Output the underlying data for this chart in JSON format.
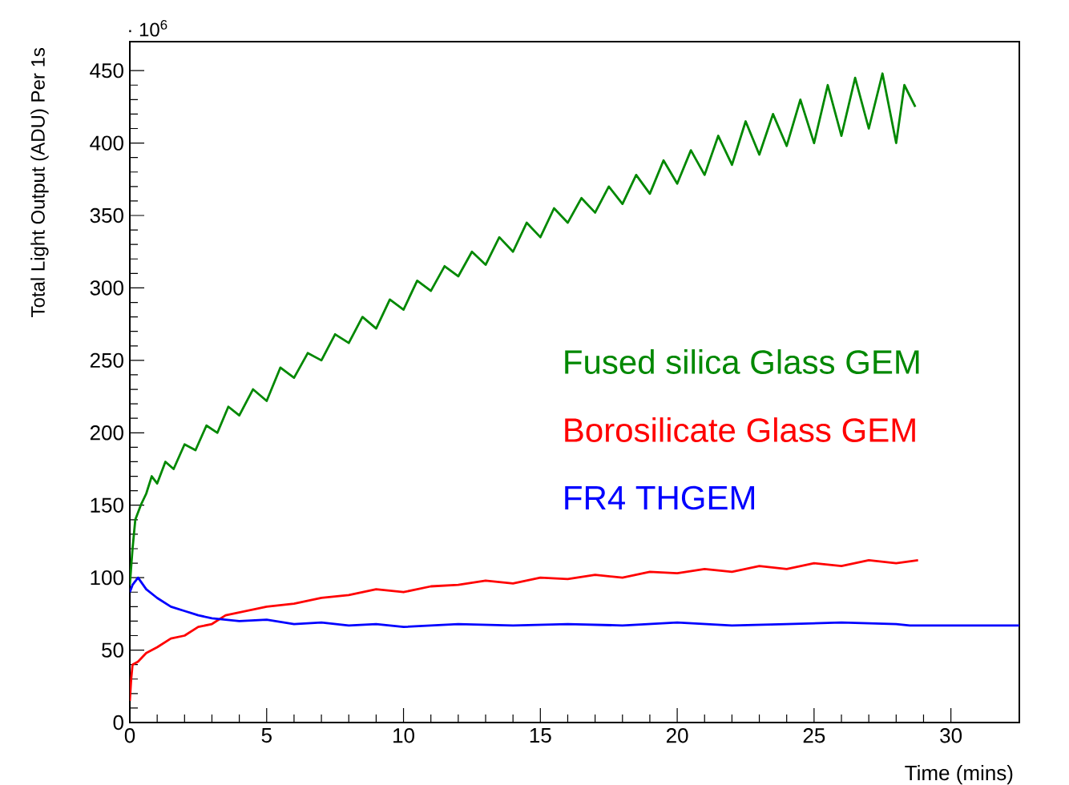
{
  "chart_data": {
    "type": "line",
    "xlabel": "Time (mins)",
    "ylabel": "Total Light Output (ADU) Per 1s",
    "annotations": [
      "· 10$^{6}$"
    ],
    "xlim": [
      0,
      32.5
    ],
    "ylim": [
      0,
      470
    ],
    "xticks": [
      0,
      5,
      10,
      15,
      20,
      25,
      30
    ],
    "yticks": [
      0,
      50,
      100,
      150,
      200,
      250,
      300,
      350,
      400,
      450
    ],
    "legend": false,
    "grid": false,
    "marker": "none",
    "line_style": "solid",
    "series": [
      {
        "name": "Fused silica Glass GEM",
        "color": "#008800",
        "x": [
          0,
          0.1,
          0.2,
          0.4,
          0.6,
          0.8,
          1.0,
          1.3,
          1.6,
          2.0,
          2.4,
          2.8,
          3.2,
          3.6,
          4.0,
          4.5,
          5.0,
          5.5,
          6.0,
          6.5,
          7.0,
          7.5,
          8.0,
          8.5,
          9.0,
          9.5,
          10,
          10.5,
          11,
          11.5,
          12,
          12.5,
          13,
          13.5,
          14,
          14.5,
          15,
          15.5,
          16,
          16.5,
          17,
          17.5,
          18,
          18.5,
          19,
          19.5,
          20,
          20.5,
          21,
          21.5,
          22,
          22.5,
          23,
          23.5,
          24,
          24.5,
          25,
          25.5,
          26,
          26.5,
          27,
          27.5,
          28,
          28.3,
          28.7
        ],
        "values": [
          95,
          120,
          140,
          150,
          158,
          170,
          165,
          180,
          175,
          192,
          188,
          205,
          200,
          218,
          212,
          230,
          222,
          245,
          238,
          255,
          250,
          268,
          262,
          280,
          272,
          292,
          285,
          305,
          298,
          315,
          308,
          325,
          316,
          335,
          325,
          345,
          335,
          355,
          345,
          362,
          352,
          370,
          358,
          378,
          365,
          388,
          372,
          395,
          378,
          405,
          385,
          415,
          392,
          420,
          398,
          430,
          400,
          440,
          405,
          445,
          410,
          448,
          400,
          440,
          425
        ]
      },
      {
        "name": "Borosilicate Glass GEM",
        "color": "#ff0000",
        "x": [
          0,
          0.05,
          0.1,
          0.3,
          0.6,
          1,
          1.5,
          2,
          2.5,
          3,
          3.5,
          4,
          5,
          6,
          7,
          8,
          9,
          10,
          11,
          12,
          13,
          14,
          15,
          16,
          17,
          18,
          19,
          20,
          21,
          22,
          23,
          24,
          25,
          26,
          27,
          28,
          28.8
        ],
        "values": [
          15,
          30,
          40,
          42,
          48,
          52,
          58,
          60,
          66,
          68,
          74,
          76,
          80,
          82,
          86,
          88,
          92,
          90,
          94,
          95,
          98,
          96,
          100,
          99,
          102,
          100,
          104,
          103,
          106,
          104,
          108,
          106,
          110,
          108,
          112,
          110,
          112
        ]
      },
      {
        "name": "FR4 THGEM",
        "color": "#0000ff",
        "x": [
          0,
          0.1,
          0.3,
          0.6,
          1,
          1.5,
          2,
          2.5,
          3,
          4,
          5,
          6,
          7,
          8,
          9,
          10,
          12,
          14,
          16,
          18,
          20,
          22,
          24,
          26,
          28,
          28.5,
          32.5
        ],
        "values": [
          90,
          95,
          100,
          92,
          86,
          80,
          77,
          74,
          72,
          70,
          71,
          68,
          69,
          67,
          68,
          66,
          68,
          67,
          68,
          67,
          69,
          67,
          68,
          69,
          68,
          67,
          67
        ]
      }
    ]
  }
}
